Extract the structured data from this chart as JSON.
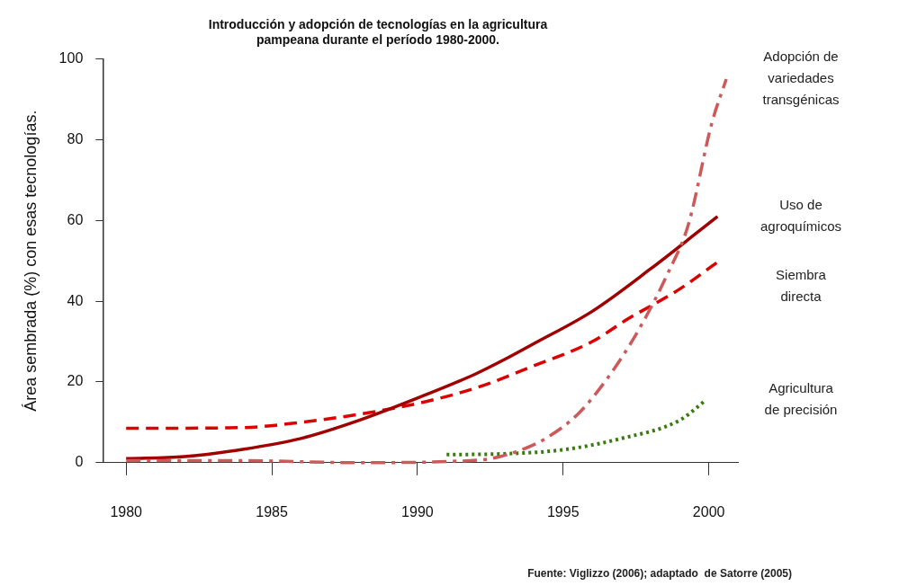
{
  "chart_data": {
    "type": "line",
    "title": "Introducción y adopción de tecnologías en la agricultura\npampeana durante el período 1980-2000.",
    "ylabel": "Área sembrada (%) con esas tecnologías.",
    "xlim": [
      1979.2,
      2001
    ],
    "xticks": [
      1980,
      1985,
      1990,
      1995,
      2000
    ],
    "ylim": [
      0,
      100
    ],
    "yticks": [
      0,
      20,
      40,
      60,
      80,
      100
    ],
    "grid": false,
    "legend": false,
    "marker": "none",
    "series": [
      {
        "name": "Adopción de\nvariedades\ntransgénicas",
        "color": "#cc5a5a",
        "line_style": "dashdot",
        "x": [
          1980,
          1984,
          1988,
          1991,
          1992.5,
          1993.5,
          1994.4,
          1995.5,
          1996.5,
          1997.6,
          1998.6,
          1999.3,
          2000.1,
          2000.6
        ],
        "values": [
          0.5,
          0.5,
          0,
          0.3,
          1,
          3,
          6,
          12,
          20.7,
          33,
          47,
          59,
          84,
          95
        ]
      },
      {
        "name": "Uso de\nagroquímicos",
        "color": "#a00000",
        "line_style": "solid",
        "x": [
          1980,
          1982,
          1984,
          1986,
          1988,
          1990,
          1992,
          1993,
          1994,
          1996,
          1998,
          2000.3
        ],
        "values": [
          1,
          1.5,
          3.3,
          6,
          10.5,
          16,
          22,
          25.6,
          29.5,
          37.5,
          48,
          61
        ]
      },
      {
        "name": "Siembra\ndirecta",
        "color": "#dd0000",
        "line_style": "dashed",
        "x": [
          1980,
          1984,
          1986,
          1988,
          1990.2,
          1992,
          1994,
          1996,
          1997.2,
          1999,
          2000.3
        ],
        "values": [
          8.5,
          8.7,
          10,
          12,
          15,
          18.5,
          24,
          30,
          35.5,
          43,
          49.7
        ]
      },
      {
        "name": "Agricultura\nde precisión",
        "color": "#3a7a10",
        "line_style": "dotted",
        "x": [
          1991,
          1993,
          1995,
          1997,
          1999,
          1999.9
        ],
        "values": [
          2,
          2.2,
          3.2,
          6,
          10.5,
          15.5
        ]
      }
    ],
    "annotations": [
      "Fuente: Viglizzo (2006); adaptado  de Satorre (2005)"
    ]
  }
}
